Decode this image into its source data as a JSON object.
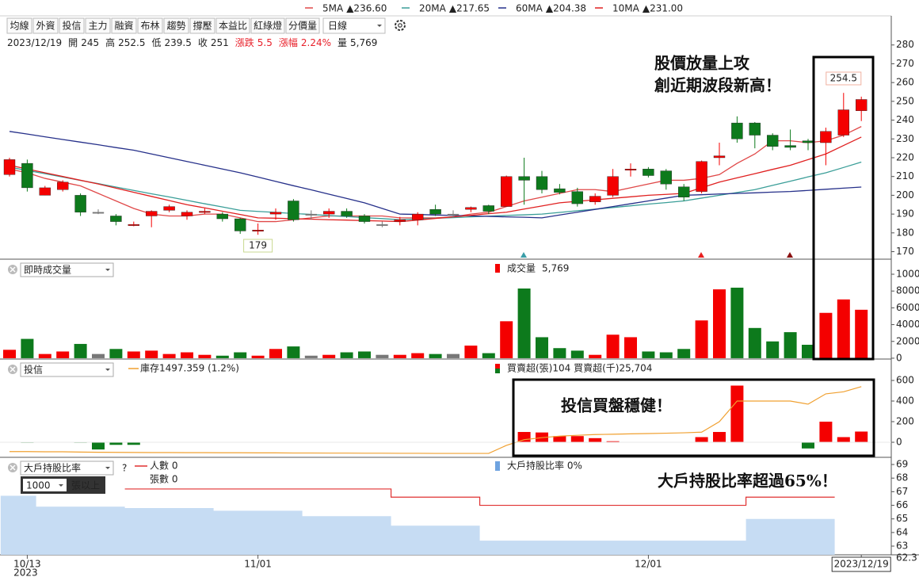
{
  "legend": [
    {
      "name": "5MA",
      "value": "▲236.60",
      "color": "#e04848"
    },
    {
      "name": "20MA",
      "value": "▲217.65",
      "color": "#3a9e98"
    },
    {
      "name": "60MA",
      "value": "▲204.38",
      "color": "#26308a"
    },
    {
      "name": "10MA",
      "value": "▲231.00",
      "color": "#e02020"
    }
  ],
  "toolbar": {
    "buttons": [
      "均線",
      "外資",
      "投信",
      "主力",
      "融資",
      "布林",
      "趨勢",
      "撐壓",
      "本益比",
      "紅綠燈",
      "分價量"
    ],
    "period": "日線"
  },
  "info": {
    "date": "2023/12/19",
    "items": [
      {
        "label": "開",
        "value": "245"
      },
      {
        "label": "高",
        "value": "252.5"
      },
      {
        "label": "低",
        "value": "239.5"
      },
      {
        "label": "收",
        "value": "251"
      },
      {
        "label": "漲跌",
        "value": "5.5",
        "color": "#e8202a"
      },
      {
        "label": "漲幅",
        "value": "2.24%",
        "color": "#e8202a"
      },
      {
        "label": "量",
        "value": "5,769"
      }
    ]
  },
  "annotations": [
    "股價放量上攻",
    "創近期波段新高！",
    "投信買盤穩健！",
    "大戶持股比率超過65%！"
  ],
  "chart_data": [
    {
      "type": "candlestick",
      "categories": [
        null,
        "10/13",
        null,
        null,
        null,
        null,
        null,
        null,
        null,
        null,
        null,
        null,
        null,
        null,
        "11/01",
        null,
        null,
        null,
        null,
        null,
        null,
        null,
        null,
        null,
        null,
        null,
        null,
        null,
        null,
        null,
        null,
        null,
        null,
        null,
        null,
        null,
        "12/01",
        null,
        null,
        null,
        null,
        null,
        null,
        null,
        null,
        null,
        null,
        null,
        "2023/12/19"
      ],
      "x_year": "2023",
      "open": [
        211,
        217,
        200,
        203,
        200,
        191,
        189,
        184,
        189,
        192,
        189,
        191,
        190,
        187.5,
        181,
        190,
        197,
        190,
        190,
        191.5,
        189,
        184.5,
        186,
        187,
        192.5,
        190,
        192.5,
        194.5,
        194,
        210,
        210,
        203.5,
        202,
        196.5,
        200,
        213.5,
        214,
        213,
        204.5,
        202,
        220,
        238.5,
        238.5,
        232,
        226.5,
        229,
        228,
        232,
        245
      ],
      "high": [
        220,
        219,
        205,
        208,
        201,
        192.5,
        190,
        186,
        192,
        195,
        192,
        193,
        191,
        188,
        185,
        193,
        198,
        192,
        193,
        193,
        190,
        186,
        188.5,
        191,
        195,
        192,
        194,
        195,
        210.5,
        220,
        213,
        206,
        204,
        201,
        214,
        217,
        215,
        214,
        206,
        218.5,
        228,
        242,
        239,
        233,
        235,
        230,
        236,
        254.5,
        252.5
      ],
      "low": [
        210,
        202,
        200,
        202,
        189,
        190,
        184,
        183.5,
        183,
        191,
        187,
        190,
        186,
        179.5,
        179,
        187,
        186,
        187,
        188,
        188,
        185,
        183,
        184,
        184,
        189,
        188,
        191,
        190,
        194,
        195,
        201,
        200.5,
        194,
        195,
        199,
        210,
        209.5,
        203,
        197,
        201,
        216,
        228,
        225,
        224,
        224,
        224,
        216,
        231,
        239.5
      ],
      "close": [
        219,
        204,
        204,
        207,
        191,
        191,
        186,
        184.5,
        191.5,
        194,
        191,
        191.5,
        187.5,
        181,
        181.5,
        191,
        187,
        190,
        191.5,
        189,
        186,
        184.5,
        187,
        190,
        190,
        190,
        193.5,
        191.5,
        210,
        208,
        203,
        201.5,
        195.5,
        199.5,
        210,
        214,
        210.5,
        206,
        199,
        218,
        221,
        230,
        232,
        226,
        225.5,
        228,
        234,
        245.5,
        251
      ],
      "up_color": "#f40000",
      "down_color": "#0d7a1c",
      "flat_color": "#777777",
      "series": [
        {
          "name": "5MA",
          "color": "#e04848",
          "values": [
            214,
            212,
            209,
            207,
            205,
            201,
            197,
            193,
            190,
            189,
            189,
            190,
            190,
            188,
            186,
            186,
            187,
            188,
            189,
            189,
            189,
            189,
            188,
            188,
            188,
            188.5,
            190,
            191,
            194,
            197,
            199,
            201,
            203,
            203,
            202,
            204,
            206,
            208,
            208,
            209,
            211,
            217,
            222,
            229,
            229,
            228,
            229,
            232,
            236.6
          ]
        },
        {
          "name": "20MA",
          "color": "#3a9e98",
          "values": [
            215,
            213.2,
            211.5,
            209.7,
            207.9,
            206.2,
            204.4,
            202.6,
            200.8,
            199.1,
            197.3,
            195.5,
            193.8,
            192,
            191.4,
            190.9,
            190.3,
            189.8,
            189.2,
            188.7,
            188.1,
            187.6,
            187,
            187.4,
            187.8,
            188.1,
            188.5,
            188.9,
            189.3,
            189.6,
            190,
            190.9,
            191.8,
            192.6,
            193.5,
            194.4,
            195.3,
            196.1,
            197,
            198.5,
            200,
            201.5,
            203,
            205.3,
            207.5,
            209.8,
            212,
            214.8,
            217.65
          ]
        },
        {
          "name": "60MA",
          "color": "#26308a",
          "values": [
            234,
            232.6,
            231.1,
            229.7,
            228.3,
            226.9,
            225.4,
            224,
            222,
            220,
            218,
            216,
            214,
            212,
            209.7,
            207.4,
            205.1,
            202.9,
            200.6,
            198.3,
            196,
            193,
            190,
            189.8,
            189.5,
            189.3,
            189,
            188.8,
            188.5,
            188.3,
            188,
            189.5,
            191,
            192.5,
            194,
            195.5,
            197,
            198.5,
            200,
            200.3,
            200.7,
            201,
            201.3,
            201.7,
            202,
            202.6,
            203.2,
            203.8,
            204.38
          ]
        },
        {
          "name": "10MA",
          "color": "#e02020",
          "values": [
            216,
            214,
            212,
            210,
            208,
            206,
            203.8,
            201.6,
            199.4,
            197.2,
            195,
            193.3,
            191.5,
            189.8,
            188,
            187.8,
            187.5,
            187.3,
            187,
            186.8,
            186.5,
            186.3,
            186,
            186.8,
            187.7,
            188.5,
            189.3,
            190.2,
            191,
            192.7,
            194.3,
            196,
            196.8,
            197.6,
            198.4,
            199.2,
            200,
            200.5,
            201,
            204,
            207,
            209.3,
            211.5,
            213.8,
            216,
            219,
            222,
            226.5,
            231
          ]
        }
      ],
      "ylim": [
        166,
        295.5
      ],
      "yticks": [
        170,
        180,
        190,
        200,
        210,
        220,
        230,
        240,
        250,
        260,
        270,
        280
      ]
    },
    {
      "type": "bar",
      "title": "即時成交量",
      "legend": "成交量",
      "legend_value": "5,769",
      "values": [
        1000,
        2300,
        500,
        800,
        1700,
        500,
        1100,
        800,
        900,
        500,
        700,
        400,
        300,
        700,
        300,
        1100,
        1400,
        300,
        400,
        700,
        800,
        400,
        400,
        600,
        500,
        500,
        1500,
        600,
        4400,
        8300,
        2500,
        1200,
        900,
        400,
        2800,
        2500,
        800,
        700,
        1100,
        4500,
        8200,
        8400,
        3600,
        2000,
        3100,
        1600,
        5400,
        7000,
        5769
      ],
      "ylim": [
        -100,
        11700
      ],
      "yticks": [
        0,
        2000,
        4000,
        6000,
        8000,
        10000
      ]
    },
    {
      "type": "bar",
      "title": "投信",
      "series": [
        {
          "name": "買賣超(張)104 買賣超(千)25,704",
          "type": "bar",
          "up_color": "#f40000",
          "down_color": "#0d7a1c",
          "values": [
            0,
            -5,
            0,
            0,
            -5,
            -70,
            -25,
            -25,
            0,
            0,
            0,
            0,
            0,
            0,
            0,
            0,
            0,
            0,
            0,
            0,
            0,
            0,
            0,
            0,
            0,
            0,
            3,
            0,
            0,
            100,
            95,
            60,
            60,
            40,
            10,
            0,
            0,
            0,
            0,
            50,
            100,
            550,
            0,
            0,
            0,
            -60,
            200,
            50,
            104
          ]
        },
        {
          "name": "庫存1497.359 (1.2%)",
          "type": "line",
          "color": "#f0a030",
          "values": [
            -90,
            -90,
            -92,
            -92,
            -95,
            -97,
            -98,
            -99,
            -100,
            -100,
            -101,
            -101,
            -102,
            -102,
            -103,
            -103,
            -104,
            -104,
            -105,
            -105,
            -106,
            -106,
            -107,
            -107,
            -108,
            -108,
            -108,
            -108,
            -30,
            25,
            45,
            60,
            68,
            75,
            78,
            82,
            85,
            88,
            92,
            98,
            200,
            400,
            400,
            400,
            400,
            370,
            470,
            490,
            540
          ]
        }
      ],
      "ylim": [
        -146,
        800
      ],
      "yticks": [
        0,
        200,
        400,
        600
      ]
    },
    {
      "type": "area",
      "title": "大戶持股比率",
      "help": "?",
      "filter": {
        "value": "1000",
        "unit": "張以上"
      },
      "extra_legend": "張數 0",
      "series": [
        {
          "name": "大戶持股比率 0%",
          "type": "area",
          "color": "#c6dcf3",
          "values": [
            66.7,
            66.7,
            65.9,
            65.9,
            65.9,
            65.9,
            65.9,
            65.8,
            65.8,
            65.8,
            65.8,
            65.8,
            65.6,
            65.6,
            65.6,
            65.6,
            65.6,
            65.2,
            65.2,
            65.2,
            65.2,
            65.2,
            64.5,
            64.5,
            64.5,
            64.5,
            64.5,
            63.4,
            63.4,
            63.4,
            63.4,
            63.4,
            63.4,
            63.4,
            63.4,
            63.4,
            63.4,
            63.4,
            63.4,
            63.4,
            63.4,
            63.4,
            65.0,
            65.0,
            65.0,
            65.0,
            65.0,
            null,
            null
          ]
        },
        {
          "name": "人數 0",
          "type": "line",
          "color": "#e03030",
          "values": [
            null,
            null,
            null,
            null,
            null,
            null,
            null,
            67.2,
            67.2,
            67.2,
            67.2,
            67.2,
            67.2,
            67.2,
            67.2,
            67.2,
            67.2,
            67.2,
            67.2,
            67.2,
            67.2,
            67.2,
            66.6,
            66.6,
            66.6,
            66.6,
            66.6,
            66.0,
            66.0,
            66.0,
            66.0,
            66.0,
            66.0,
            66.0,
            66.0,
            66.0,
            66.0,
            66.0,
            66.0,
            66.0,
            66.0,
            66.0,
            66.6,
            66.6,
            66.6,
            66.6,
            66.6,
            null,
            null
          ]
        }
      ],
      "marker_value": 62.3,
      "ylim": [
        62.36,
        69.47
      ],
      "yticks": [
        63,
        64,
        65,
        66,
        67,
        68,
        69
      ]
    }
  ]
}
